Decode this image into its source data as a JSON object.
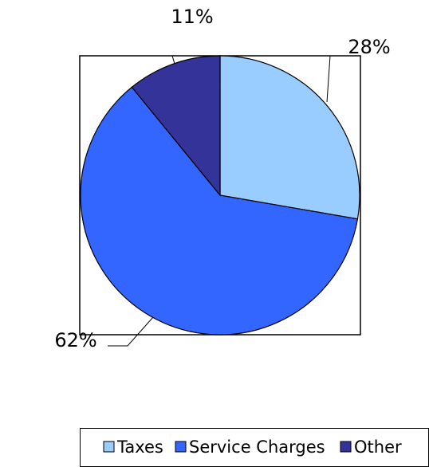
{
  "chart_data": {
    "type": "pie",
    "categories": [
      "Taxes",
      "Service Charges",
      "Other"
    ],
    "values": [
      28,
      62,
      11
    ],
    "value_labels": [
      "28%",
      "62%",
      "11%"
    ],
    "colors": [
      "#99ccff",
      "#3366ff",
      "#333399"
    ],
    "legend": "bottom"
  }
}
